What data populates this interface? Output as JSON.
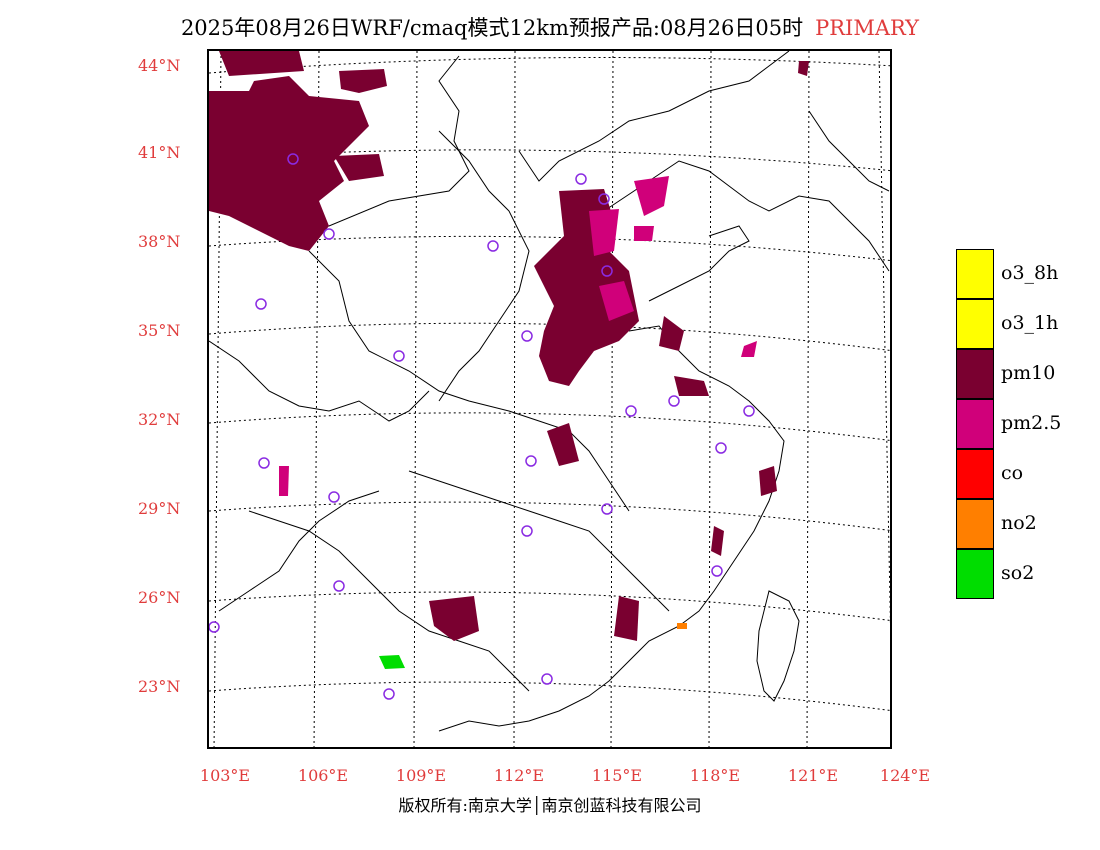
{
  "title": {
    "main": "2025年08月26日WRF/cmaq模式12km预报产品:08月26日05时",
    "tag": "PRIMARY"
  },
  "map": {
    "lat_labels": [
      "44°N",
      "41°N",
      "38°N",
      "35°N",
      "32°N",
      "29°N",
      "26°N",
      "23°N"
    ],
    "lon_labels": [
      "103°E",
      "106°E",
      "109°E",
      "112°E",
      "115°E",
      "118°E",
      "121°E",
      "124°E"
    ]
  },
  "legend": [
    {
      "label": "o3_8h",
      "color": "#ffff00"
    },
    {
      "label": "o3_1h",
      "color": "#ffff00"
    },
    {
      "label": "pm10",
      "color": "#7a0030"
    },
    {
      "label": "pm2.5",
      "color": "#d0007a"
    },
    {
      "label": "co",
      "color": "#ff0000"
    },
    {
      "label": "no2",
      "color": "#ff7f00"
    },
    {
      "label": "so2",
      "color": "#00dd00"
    }
  ],
  "colors": {
    "pm10": "#7a0030",
    "pm25": "#d0007a",
    "so2": "#00dd00",
    "no2": "#ff7f00",
    "station": "#8a2be2",
    "label_red": "#e03c3c"
  },
  "footer": {
    "copyright": "版权所有:南京大学│南京创蓝科技有限公司"
  }
}
